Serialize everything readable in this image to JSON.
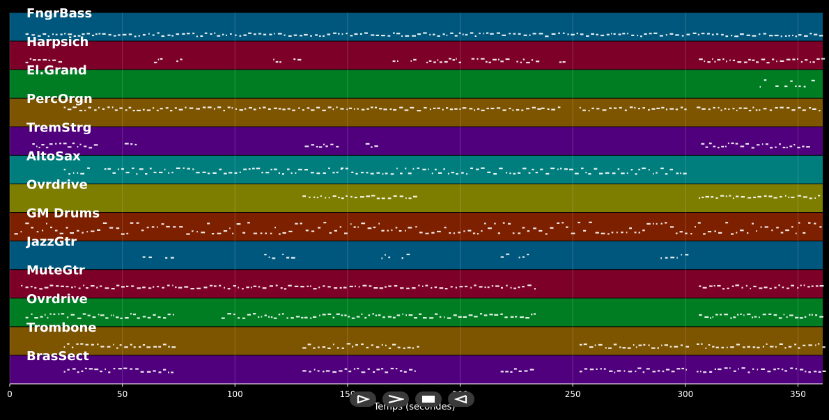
{
  "chart_data": {
    "type": "piano-roll",
    "xlabel": "Temps (secondes)",
    "xlim": [
      0,
      361
    ],
    "xticks": [
      0,
      50,
      100,
      150,
      200,
      250,
      300,
      350
    ],
    "grid": true,
    "tracks": [
      {
        "name": "FngrBass",
        "color": "#00577d",
        "segments": [
          [
            7,
            361
          ]
        ],
        "density": 3,
        "y": [
          0.72,
          0.78
        ]
      },
      {
        "name": "Harpsich",
        "color": "#7d0028",
        "segments": [
          [
            7,
            24
          ],
          [
            64,
            68
          ],
          [
            74,
            76
          ],
          [
            117,
            120
          ],
          [
            126,
            129
          ],
          [
            170,
            173
          ],
          [
            178,
            180
          ],
          [
            185,
            200
          ],
          [
            205,
            221
          ],
          [
            225,
            236
          ],
          [
            244,
            247
          ],
          [
            306,
            361
          ]
        ],
        "density": 5,
        "y": [
          0.62,
          0.7
        ]
      },
      {
        "name": "El.Grand",
        "color": "#007d23",
        "segments": [
          [
            333,
            336
          ],
          [
            340,
            342
          ],
          [
            344,
            353
          ],
          [
            356,
            358
          ]
        ],
        "density": 2,
        "y": [
          0.35,
          0.55
        ]
      },
      {
        "name": "PercOrgn",
        "color": "#7d5400",
        "segments": [
          [
            24,
            235
          ],
          [
            236,
            244
          ],
          [
            253,
            301
          ],
          [
            305,
            361
          ]
        ],
        "density": 3,
        "y": [
          0.32,
          0.38
        ]
      },
      {
        "name": "TremStrg",
        "color": "#50007d",
        "segments": [
          [
            10,
            40
          ],
          [
            51,
            57
          ],
          [
            131,
            146
          ],
          [
            158,
            163
          ],
          [
            307,
            355
          ]
        ],
        "density": 5,
        "y": [
          0.58,
          0.68
        ]
      },
      {
        "name": "AltoSax",
        "color": "#007d7d",
        "segments": [
          [
            24,
            35
          ],
          [
            42,
            148
          ],
          [
            147,
            301
          ]
        ],
        "density": 3,
        "y": [
          0.45,
          0.6
        ]
      },
      {
        "name": "Ovrdrive",
        "color": "#7d7d00",
        "segments": [
          [
            130,
            181
          ],
          [
            306,
            361
          ]
        ],
        "density": 3,
        "y": [
          0.4,
          0.45
        ]
      },
      {
        "name": "GM Drums",
        "color": "#7d2000",
        "segments": [
          [
            2,
            361
          ]
        ],
        "density": 2,
        "y": [
          0.35,
          0.5,
          0.62,
          0.7
        ]
      },
      {
        "name": "JazzGtr",
        "color": "#00577d",
        "segments": [
          [
            59,
            64
          ],
          [
            69,
            73
          ],
          [
            113,
            117
          ],
          [
            121,
            125
          ],
          [
            165,
            170
          ],
          [
            174,
            178
          ],
          [
            218,
            222
          ],
          [
            226,
            231
          ],
          [
            289,
            301
          ]
        ],
        "density": 2,
        "y": [
          0.45,
          0.55
        ]
      },
      {
        "name": "MuteGtr",
        "color": "#7d0028",
        "segments": [
          [
            5,
            233
          ],
          [
            306,
            361
          ]
        ],
        "density": 3,
        "y": [
          0.55,
          0.62
        ]
      },
      {
        "name": "Ovrdrive",
        "color": "#007d23",
        "segments": [
          [
            7,
            73
          ],
          [
            94,
            233
          ],
          [
            306,
            361
          ]
        ],
        "density": 4,
        "y": [
          0.55,
          0.65
        ]
      },
      {
        "name": "Trombone",
        "color": "#7d5400",
        "segments": [
          [
            24,
            73
          ],
          [
            130,
            181
          ],
          [
            253,
            301
          ],
          [
            305,
            361
          ]
        ],
        "density": 3,
        "y": [
          0.6,
          0.7
        ]
      },
      {
        "name": "BrasSect",
        "color": "#50007d",
        "segments": [
          [
            24,
            73
          ],
          [
            130,
            181
          ],
          [
            218,
            231
          ],
          [
            253,
            301
          ],
          [
            305,
            361
          ]
        ],
        "density": 3,
        "y": [
          0.45,
          0.55
        ]
      }
    ]
  },
  "transport": {
    "play_label": "play-icon",
    "fast_forward_label": "fast-forward-icon",
    "stop_label": "stop-icon",
    "rewind_label": "rewind-icon"
  }
}
